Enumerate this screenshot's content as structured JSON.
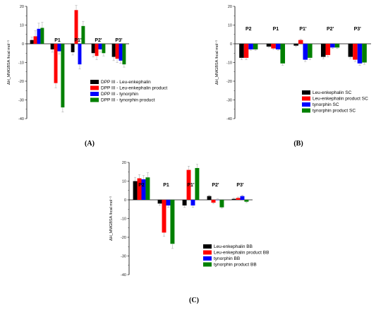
{
  "colors": {
    "black": "#000000",
    "red": "#ff0000",
    "blue": "#0000ff",
    "green": "#008000",
    "error": "#b0b0b0"
  },
  "chart_data": [
    {
      "type": "bar",
      "panel_label": "(A)",
      "ylabel": "ΔH_MMGBSA /kcal mol⁻¹",
      "ylim": [
        -40,
        20
      ],
      "yticks": [
        20,
        10,
        0,
        -10,
        -20,
        -30,
        -40
      ],
      "categories": [
        "",
        "P1",
        "P1'",
        "P2'",
        "P3'"
      ],
      "legend_position": "bottom-right",
      "series": [
        {
          "name": "DPP III - Leu-enkephalin",
          "color": "#000000",
          "values": [
            2,
            -3,
            -4.5,
            -5,
            -7
          ],
          "errors": [
            1.5,
            1.5,
            1.5,
            2,
            2
          ]
        },
        {
          "name": "DPP III - Leu-enkephalin product",
          "color": "#ff0000",
          "values": [
            4,
            -21,
            18,
            -6.5,
            -8
          ],
          "errors": [
            3,
            2.5,
            2.5,
            2,
            2
          ]
        },
        {
          "name": "DPP III - tynorphin",
          "color": "#0000ff",
          "values": [
            8,
            -4,
            -11,
            -3,
            -9
          ],
          "errors": [
            3,
            1.5,
            2.5,
            1.5,
            1.5
          ]
        },
        {
          "name": "DPP III - tynorphin product",
          "color": "#008000",
          "values": [
            8.5,
            -34,
            9.5,
            -5,
            -11
          ],
          "errors": [
            3,
            2.5,
            2.5,
            1.5,
            1.5
          ]
        }
      ]
    },
    {
      "type": "bar",
      "panel_label": "(B)",
      "ylabel": "ΔH_MMGBSA /kcal mol⁻¹",
      "ylim": [
        -40,
        20
      ],
      "yticks": [
        20,
        10,
        0,
        -10,
        -20,
        -30,
        -40
      ],
      "categories": [
        "P2",
        "P1",
        "P1'",
        "P2'",
        "P3'"
      ],
      "legend_position": "bottom-right",
      "series": [
        {
          "name": "Leu-enkephalin SC",
          "color": "#000000",
          "values": [
            -7.5,
            -1.5,
            -1,
            -7,
            -7
          ],
          "errors": [
            1,
            0.5,
            0.5,
            1,
            1
          ]
        },
        {
          "name": "Leu-enkephalin product SC",
          "color": "#ff0000",
          "values": [
            -7.5,
            -2.5,
            2,
            -6,
            -8.5
          ],
          "errors": [
            1,
            0.5,
            0.5,
            1,
            1
          ]
        },
        {
          "name": "tynorphin SC",
          "color": "#0000ff",
          "values": [
            -3,
            -3,
            -8.5,
            -2,
            -10.5
          ],
          "errors": [
            0.5,
            0.5,
            1,
            0.5,
            1
          ]
        },
        {
          "name": "tynorphin product SC",
          "color": "#008000",
          "values": [
            -3,
            -10.5,
            -7.5,
            -2,
            -10
          ],
          "errors": [
            0.5,
            1,
            1,
            0.5,
            1
          ]
        }
      ]
    },
    {
      "type": "bar",
      "panel_label": "(C)",
      "ylabel": "ΔH_MMGBSA /kcal mol⁻¹",
      "ylim": [
        -40,
        20
      ],
      "yticks": [
        20,
        10,
        0,
        -10,
        -20,
        -30,
        -40
      ],
      "categories": [
        "P2",
        "P1",
        "P1'",
        "P2'",
        "P3'"
      ],
      "legend_position": "bottom-right",
      "series": [
        {
          "name": "Leu-enkephalin BB",
          "color": "#000000",
          "values": [
            10,
            -2,
            -3,
            2,
            0.5
          ],
          "errors": [
            2,
            1,
            1,
            0.5,
            0.5
          ]
        },
        {
          "name": "Leu-enkephalin product BB",
          "color": "#ff0000",
          "values": [
            11.5,
            -17.5,
            16,
            -1.5,
            1
          ],
          "errors": [
            2,
            2,
            2,
            0.5,
            0.5
          ]
        },
        {
          "name": "tynorphin BB",
          "color": "#0000ff",
          "values": [
            11,
            -3,
            -3,
            0,
            2
          ],
          "errors": [
            2,
            1,
            1,
            0.5,
            0.5
          ]
        },
        {
          "name": "tynorphin product BB",
          "color": "#008000",
          "values": [
            12,
            -23.5,
            17,
            -4,
            -1
          ],
          "errors": [
            2.5,
            2.5,
            2,
            0.5,
            0.5
          ]
        }
      ]
    }
  ]
}
